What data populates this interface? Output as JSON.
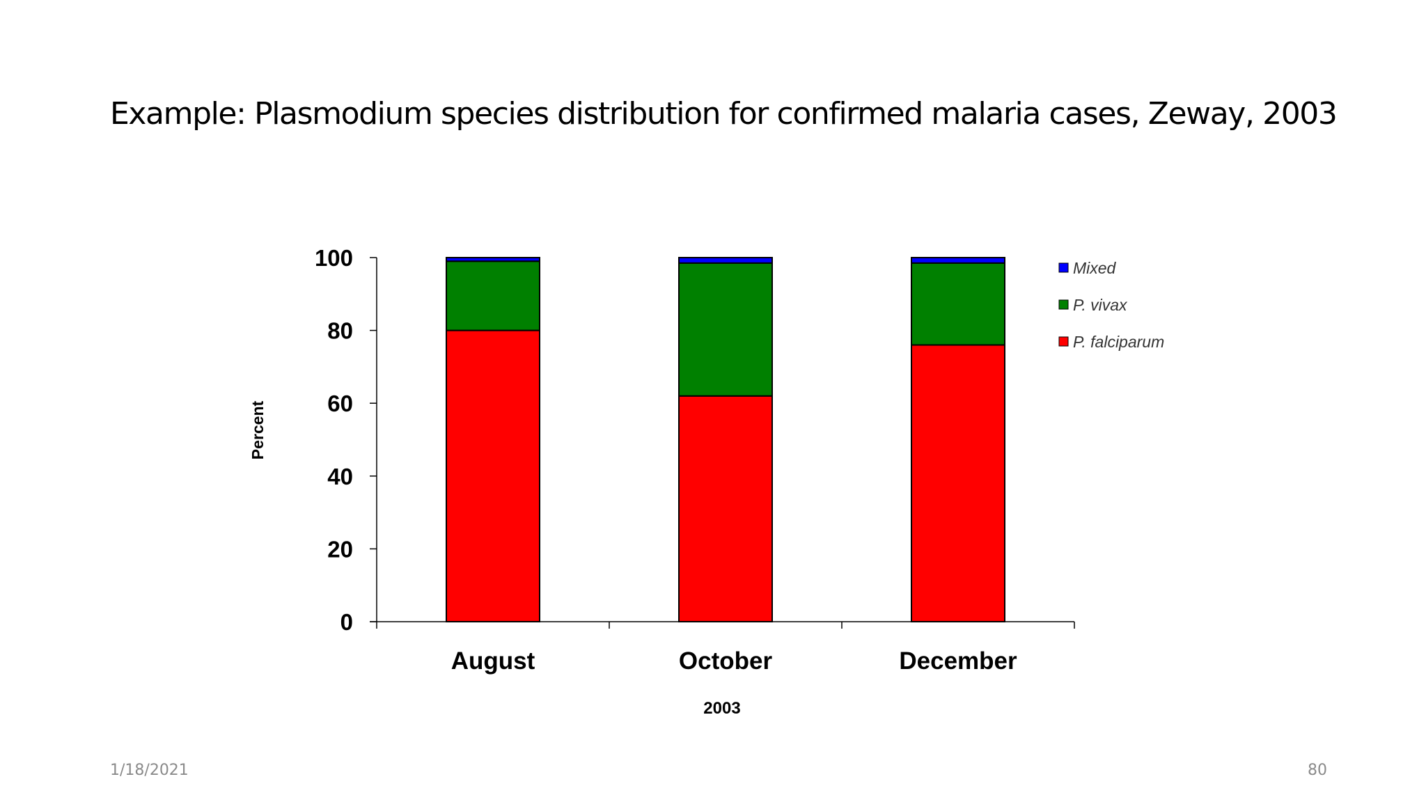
{
  "slide": {
    "title": "Example: Plasmodium species distribution for confirmed malaria cases, Zeway, 2003",
    "footer_date": "1/18/2021",
    "page_number": "80"
  },
  "chart_data": {
    "type": "bar",
    "stacked": true,
    "title": "",
    "xlabel": "2003",
    "ylabel": "Percent",
    "ylim": [
      0,
      100
    ],
    "yticks": [
      0,
      20,
      40,
      60,
      80,
      100
    ],
    "categories": [
      "August",
      "October",
      "December"
    ],
    "series": [
      {
        "name": "P. falciparum",
        "color": "#ff0000",
        "values": [
          80,
          62,
          76
        ]
      },
      {
        "name": "P. vivax",
        "color": "#008000",
        "values": [
          19,
          36.5,
          22.5
        ]
      },
      {
        "name": "Mixed",
        "color": "#0000ff",
        "values": [
          1,
          1.5,
          1.5
        ]
      }
    ],
    "legend": {
      "placement": "right",
      "order": [
        "Mixed",
        "P. vivax",
        "P. falciparum"
      ]
    },
    "grid": false
  }
}
